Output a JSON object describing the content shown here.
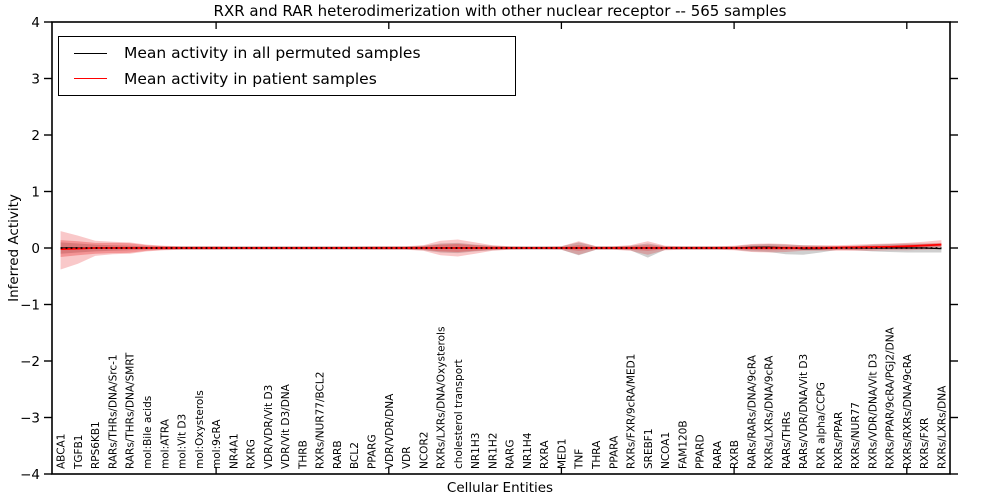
{
  "title": "RXR and RAR heterodimerization with other nuclear receptor -- 565 samples",
  "legend": {
    "items": [
      {
        "label": "Mean activity in all permuted samples",
        "color": "#000000"
      },
      {
        "label": "Mean activity in patient samples",
        "color": "#ff0000"
      }
    ]
  },
  "chart_data": {
    "type": "line",
    "title": "RXR and RAR heterodimerization with other nuclear receptor -- 565 samples",
    "xlabel": "Cellular Entities",
    "ylabel": "Inferred Activity",
    "ylim": [
      -4,
      4
    ],
    "yticks": [
      -4,
      -3,
      -2,
      -1,
      0,
      1,
      2,
      3,
      4
    ],
    "grid": false,
    "legend_position": "upper left",
    "categories": [
      "ABCA1",
      "TGFB1",
      "RPS6KB1",
      "RARs/THRs/DNA/Src-1",
      "RARs/THRs/DNA/SMRT",
      "mol:Bile acids",
      "mol:ATRA",
      "mol:Vit D3",
      "mol:Oxysterols",
      "mol:9cRA",
      "NR4A1",
      "RXRG",
      "VDR/VDR/Vit D3",
      "VDR/Vit D3/DNA",
      "THRB",
      "RXRs/NUR77/BCL2",
      "RARB",
      "BCL2",
      "PPARG",
      "VDR/VDR/DNA",
      "VDR",
      "NCOR2",
      "RXRs/LXRs/DNA/Oxysterols",
      "cholesterol transport",
      "NR1H3",
      "NR1H2",
      "RARG",
      "NR1H4",
      "RXRA",
      "MED1",
      "TNF",
      "THRA",
      "PPARA",
      "RXRs/FXR/9cRA/MED1",
      "SREBF1",
      "NCOA1",
      "FAM120B",
      "PPARD",
      "RARA",
      "RXRB",
      "RARs/RARs/DNA/9cRA",
      "RXRs/LXRs/DNA/9cRA",
      "RARs/THRs",
      "RARs/VDR/DNA/Vit D3",
      "RXR alpha/CCPG",
      "RXRs/PPAR",
      "RXRs/NUR77",
      "RXRs/VDR/DNA/Vit D3",
      "RXRs/PPAR/9cRA/PGJ2/DNA",
      "RXRs/RXRs/DNA/9cRA",
      "RXRs/FXR",
      "RXRs/LXRs/DNA"
    ],
    "series": [
      {
        "name": "Mean activity in all permuted samples",
        "color": "#000000",
        "style": "solid",
        "width": 1.2,
        "values": [
          0,
          0,
          0,
          0,
          0,
          0,
          0,
          0,
          0,
          0,
          0,
          0,
          0,
          0,
          0,
          0,
          0,
          0,
          0,
          0,
          0,
          0,
          0,
          0,
          0,
          0,
          0,
          0,
          0,
          0,
          0,
          0,
          0,
          0,
          0,
          0,
          0,
          0,
          0,
          0,
          0.01,
          0.015,
          0.005,
          -0.015,
          -0.01,
          0,
          0,
          0,
          0,
          0,
          0,
          -0.01
        ]
      },
      {
        "name": "Permuted mean zero reference (dotted)",
        "color": "#000000",
        "style": "dotted",
        "width": 1.8,
        "values": [
          0,
          0,
          0,
          0,
          0,
          0,
          0,
          0,
          0,
          0,
          0,
          0,
          0,
          0,
          0,
          0,
          0,
          0,
          0,
          0,
          0,
          0,
          0,
          0,
          0,
          0,
          0,
          0,
          0,
          0,
          0,
          0,
          0,
          0,
          0,
          0,
          0,
          0,
          0,
          0,
          0,
          0,
          0,
          0,
          0,
          0,
          0,
          0,
          0,
          0,
          0,
          0
        ]
      },
      {
        "name": "Mean activity in patient samples",
        "color": "#ff0000",
        "style": "solid",
        "width": 1.8,
        "values": [
          -0.02,
          -0.01,
          0,
          0,
          0,
          0,
          0,
          0,
          0,
          0,
          0,
          0,
          0,
          0,
          0,
          0,
          0,
          0,
          0,
          0,
          0,
          0,
          0,
          0,
          0,
          0,
          0,
          0,
          0,
          0,
          0,
          0,
          0,
          0,
          0,
          0,
          0,
          0,
          0,
          0,
          0,
          0,
          0,
          0,
          0,
          0.005,
          0.01,
          0.015,
          0.02,
          0.03,
          0.045,
          0.06
        ]
      }
    ],
    "bands": [
      {
        "name": "permuted samples range",
        "color": "#808080",
        "opacity": 0.38,
        "hi": [
          0.1,
          0.08,
          0.06,
          0.05,
          0.04,
          0.03,
          0.03,
          0.03,
          0.03,
          0.03,
          0.03,
          0.03,
          0.03,
          0.03,
          0.03,
          0.03,
          0.03,
          0.03,
          0.03,
          0.03,
          0.03,
          0.04,
          0.08,
          0.09,
          0.06,
          0.04,
          0.03,
          0.03,
          0.03,
          0.03,
          0.1,
          0.03,
          0.03,
          0.04,
          0.08,
          0.03,
          0.03,
          0.03,
          0.03,
          0.03,
          0.06,
          0.07,
          0.06,
          0.05,
          0.04,
          0.03,
          0.04,
          0.06,
          0.07,
          0.08,
          0.08,
          0.08
        ],
        "lo": [
          -0.1,
          -0.08,
          -0.06,
          -0.05,
          -0.04,
          -0.03,
          -0.03,
          -0.03,
          -0.03,
          -0.03,
          -0.03,
          -0.03,
          -0.03,
          -0.03,
          -0.03,
          -0.03,
          -0.03,
          -0.03,
          -0.03,
          -0.03,
          -0.03,
          -0.04,
          -0.08,
          -0.09,
          -0.06,
          -0.04,
          -0.03,
          -0.03,
          -0.03,
          -0.03,
          -0.13,
          -0.03,
          -0.03,
          -0.04,
          -0.17,
          -0.03,
          -0.03,
          -0.03,
          -0.03,
          -0.03,
          -0.06,
          -0.07,
          -0.11,
          -0.12,
          -0.08,
          -0.03,
          -0.04,
          -0.06,
          -0.07,
          -0.08,
          -0.08,
          -0.08
        ]
      },
      {
        "name": "patient samples range (outer)",
        "color": "#e41a1c",
        "opacity": 0.24,
        "hi": [
          0.3,
          0.22,
          0.13,
          0.11,
          0.1,
          0.06,
          0.04,
          0.03,
          0.03,
          0.03,
          0.025,
          0.025,
          0.025,
          0.025,
          0.025,
          0.025,
          0.025,
          0.025,
          0.03,
          0.03,
          0.03,
          0.05,
          0.13,
          0.15,
          0.1,
          0.05,
          0.03,
          0.025,
          0.025,
          0.03,
          0.12,
          0.03,
          0.03,
          0.05,
          0.12,
          0.04,
          0.03,
          0.03,
          0.03,
          0.04,
          0.07,
          0.08,
          0.07,
          0.05,
          0.05,
          0.05,
          0.06,
          0.07,
          0.08,
          0.09,
          0.11,
          0.14
        ],
        "lo": [
          -0.38,
          -0.28,
          -0.14,
          -0.11,
          -0.1,
          -0.06,
          -0.04,
          -0.03,
          -0.03,
          -0.03,
          -0.025,
          -0.025,
          -0.025,
          -0.025,
          -0.025,
          -0.025,
          -0.025,
          -0.025,
          -0.03,
          -0.03,
          -0.03,
          -0.05,
          -0.13,
          -0.15,
          -0.1,
          -0.05,
          -0.03,
          -0.025,
          -0.025,
          -0.03,
          -0.12,
          -0.03,
          -0.03,
          -0.05,
          -0.12,
          -0.04,
          -0.03,
          -0.03,
          -0.03,
          -0.04,
          -0.07,
          -0.08,
          -0.07,
          -0.05,
          -0.05,
          -0.05,
          -0.05,
          -0.05,
          -0.04,
          -0.04,
          -0.03,
          -0.02
        ]
      },
      {
        "name": "patient samples range (inner)",
        "color": "#e41a1c",
        "opacity": 0.3,
        "hi": [
          0.14,
          0.12,
          0.09,
          0.09,
          0.085,
          0.05,
          0.03,
          0.02,
          0.02,
          0.02,
          0.02,
          0.02,
          0.02,
          0.02,
          0.02,
          0.02,
          0.02,
          0.02,
          0.02,
          0.02,
          0.02,
          0.03,
          0.06,
          0.07,
          0.05,
          0.03,
          0.02,
          0.02,
          0.02,
          0.02,
          0.05,
          0.02,
          0.02,
          0.03,
          0.05,
          0.025,
          0.02,
          0.02,
          0.02,
          0.025,
          0.035,
          0.04,
          0.035,
          0.03,
          0.03,
          0.03,
          0.03,
          0.04,
          0.05,
          0.06,
          0.07,
          0.09
        ],
        "lo": [
          -0.16,
          -0.13,
          -0.1,
          -0.09,
          -0.085,
          -0.05,
          -0.03,
          -0.02,
          -0.02,
          -0.02,
          -0.02,
          -0.02,
          -0.02,
          -0.02,
          -0.02,
          -0.02,
          -0.02,
          -0.02,
          -0.02,
          -0.02,
          -0.02,
          -0.03,
          -0.06,
          -0.07,
          -0.05,
          -0.03,
          -0.02,
          -0.02,
          -0.02,
          -0.02,
          -0.05,
          -0.02,
          -0.02,
          -0.03,
          -0.05,
          -0.025,
          -0.02,
          -0.02,
          -0.02,
          -0.025,
          -0.035,
          -0.04,
          -0.035,
          -0.03,
          -0.03,
          -0.03,
          -0.03,
          -0.02,
          -0.01,
          0.0,
          0.01,
          0.03
        ]
      }
    ]
  },
  "colors": {
    "spine": "#000000",
    "background": "#ffffff"
  }
}
